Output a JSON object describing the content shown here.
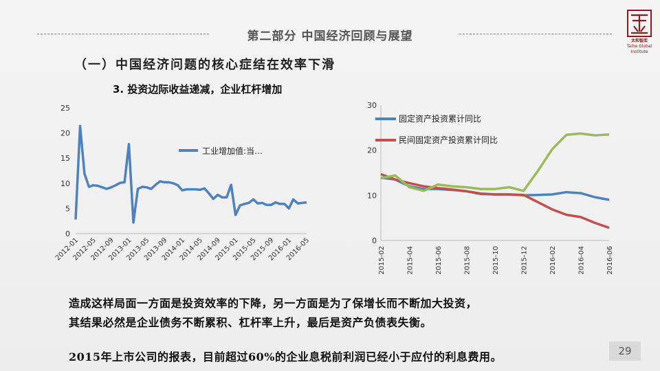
{
  "header": {
    "section_title": "第二部分  中国经济回顾与展望",
    "logo_text": "太和智库",
    "logo_subtext": "Taihe Global Institute"
  },
  "subheading": "（一）中国经济问题的核心症结在效率下滑",
  "chart_section_title": "3. 投资边际收益递减，企业杠杆增加",
  "paragraphs": {
    "line1": "造成这样局面一方面是投资效率的下降，另一方面是为了保增长而不断加大投资，",
    "line2": "其结果必然是企业债务不断累积、杠杆率上升，最后是资产负债表失衡。",
    "line3": "2015年上市公司的报表，目前超过60%的企业息税前利润已经小于应付的利息费用。"
  },
  "page_number": "29",
  "chart_data": [
    {
      "type": "line",
      "title": "",
      "xlabel": "",
      "ylabel": "",
      "ylim": [
        0,
        25
      ],
      "yticks": [
        "0",
        "5",
        "10",
        "15",
        "20",
        "25"
      ],
      "xticks": [
        "2012-01",
        "2012-05",
        "2012-09",
        "2013-01",
        "2013-05",
        "2013-09",
        "2014-01",
        "2014-05",
        "2014-09",
        "2015-01",
        "2015-05",
        "2015-09",
        "2016-01",
        "2016-05"
      ],
      "legend_position": "top-right",
      "series": [
        {
          "name": "工业增加值:当…",
          "color": "#4f81bd",
          "values": [
            2.8,
            21.4,
            11.9,
            9.3,
            9.6,
            9.5,
            9.2,
            8.9,
            9.2,
            9.6,
            10.1,
            10.2,
            17.8,
            2.2,
            8.9,
            9.3,
            9.2,
            8.9,
            9.7,
            10.4,
            10.2,
            10.2,
            10.0,
            9.6,
            8.6,
            8.8,
            8.8,
            8.8,
            8.7,
            9.0,
            8.0,
            6.9,
            7.7,
            7.2,
            7.2,
            9.7,
            3.7,
            5.6,
            5.9,
            6.1,
            6.8,
            6.0,
            6.1,
            5.7,
            5.7,
            6.2,
            5.9,
            5.9,
            5.0,
            6.8,
            6.0,
            6.1,
            6.2
          ]
        }
      ]
    },
    {
      "type": "line",
      "title": "",
      "xlabel": "",
      "ylabel": "",
      "ylim": [
        0,
        30
      ],
      "yticks": [
        "0",
        "10",
        "20",
        "30"
      ],
      "x": [
        "2015-02",
        "2015-03",
        "2015-04",
        "2015-05",
        "2015-06",
        "2015-07",
        "2015-08",
        "2015-09",
        "2015-10",
        "2015-11",
        "2015-12",
        "2016-01",
        "2016-02",
        "2016-03",
        "2016-04",
        "2016-05",
        "2016-06"
      ],
      "xticks": [
        "2015-02",
        "2015-04",
        "2015-06",
        "2015-08",
        "2015-10",
        "2015-12",
        "2016-02",
        "2016-04",
        "2016-06"
      ],
      "legend_position": "top-left",
      "series": [
        {
          "name": "固定资产投资累计同比",
          "color": "#4f81bd",
          "values": [
            13.9,
            13.5,
            12.0,
            11.4,
            11.4,
            11.2,
            10.9,
            10.3,
            10.2,
            10.2,
            10.0,
            10.1,
            10.2,
            10.7,
            10.5,
            9.6,
            9.0
          ]
        },
        {
          "name": "民间固定资产投资累计同比",
          "color": "#c0504d",
          "values": [
            14.7,
            13.5,
            12.7,
            12.0,
            11.6,
            11.3,
            10.9,
            10.4,
            10.2,
            10.2,
            10.1,
            8.5,
            6.9,
            5.7,
            5.2,
            3.9,
            2.8
          ]
        },
        {
          "name": "",
          "color": "#9bbb59",
          "values": [
            13.8,
            14.4,
            11.8,
            11.0,
            12.4,
            12.0,
            11.8,
            11.4,
            11.4,
            11.8,
            11.0,
            15.4,
            20.2,
            23.4,
            23.7,
            23.3,
            23.5
          ]
        }
      ]
    }
  ]
}
